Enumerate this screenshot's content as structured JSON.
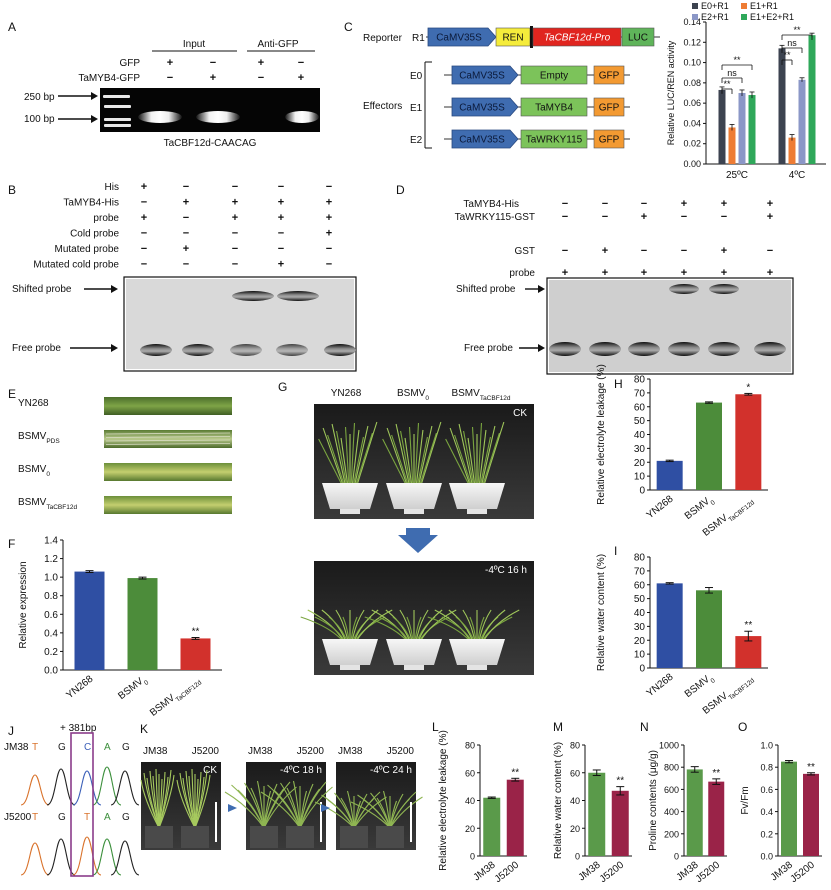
{
  "panels": {
    "A": {
      "letter": "A",
      "group_headers": [
        "Input",
        "Anti-GFP"
      ],
      "row_labels": [
        "GFP",
        "TaMYB4-GFP"
      ],
      "rows": [
        [
          "+",
          "−",
          "+",
          "−"
        ],
        [
          "−",
          "+",
          "−",
          "+"
        ]
      ],
      "ladder_labels": [
        "250 bp",
        "100 bp"
      ],
      "caption": "TaCBF12d-CAACAG"
    },
    "B": {
      "letter": "B",
      "row_labels": [
        "His",
        "TaMYB4-His",
        "probe",
        "Cold probe",
        "Mutated probe",
        "Mutated cold  probe"
      ],
      "rows": [
        [
          "+",
          "−",
          "−",
          "−",
          "−"
        ],
        [
          "−",
          "+",
          "+",
          "+",
          "+"
        ],
        [
          "+",
          "−",
          "+",
          "+",
          "+"
        ],
        [
          "−",
          "−",
          "−",
          "−",
          "+"
        ],
        [
          "−",
          "+",
          "−",
          "−",
          "−"
        ],
        [
          "−",
          "−",
          "−",
          "+",
          "−"
        ]
      ],
      "shifted_label": "Shifted probe",
      "free_label": "Free probe"
    },
    "C": {
      "letter": "C",
      "reporter_label": "Reporter",
      "reporter": {
        "id": "R1",
        "blocks": [
          "CaMV35S",
          "REN",
          "TaCBF12d-Pro",
          "LUC"
        ]
      },
      "effectors_label": "Effectors",
      "effectors": [
        {
          "id": "E0",
          "blocks": [
            "CaMV35S",
            "Empty",
            "GFP"
          ]
        },
        {
          "id": "E1",
          "blocks": [
            "CaMV35S",
            "TaMYB4",
            "GFP"
          ]
        },
        {
          "id": "E2",
          "blocks": [
            "CaMV35S",
            "TaWRKY115",
            "GFP"
          ]
        }
      ]
    },
    "D": {
      "letter": "D",
      "row_labels": [
        "TaMYB4-His",
        "TaWRKY115-GST",
        "GST",
        "probe"
      ],
      "rows": [
        [
          "−",
          "−",
          "−",
          "+",
          "+",
          "+"
        ],
        [
          "−",
          "−",
          "+",
          "−",
          "−",
          "+"
        ],
        [
          "−",
          "+",
          "−",
          "−",
          "+",
          "−"
        ],
        [
          "+",
          "+",
          "+",
          "+",
          "+",
          "+"
        ]
      ],
      "shifted_label": "Shifted probe",
      "free_label": "Free probe"
    },
    "E": {
      "letter": "E",
      "leaf_labels": [
        {
          "main": "YN268",
          "sub": ""
        },
        {
          "main": "BSMV",
          "sub": "PDS"
        },
        {
          "main": "BSMV",
          "sub": "0"
        },
        {
          "main": "BSMV",
          "sub": "TaCBF12d"
        }
      ]
    },
    "G": {
      "letter": "G",
      "columns": [
        {
          "main": "YN268",
          "sub": ""
        },
        {
          "main": "BSMV",
          "sub": "0"
        },
        {
          "main": "BSMV",
          "sub": "TaCBF12d"
        }
      ],
      "top_tag": "CK",
      "bottom_tag": "-4ºC 16 h"
    },
    "J": {
      "letter": "J",
      "annotation": "+ 381bp",
      "rows": [
        {
          "name": "JM38",
          "bases": [
            "T",
            "G",
            "C",
            "A",
            "G"
          ]
        },
        {
          "name": "J5200",
          "bases": [
            "T",
            "G",
            "T",
            "A",
            "G"
          ]
        }
      ]
    },
    "K": {
      "letter": "K",
      "photos": [
        {
          "left": "JM38",
          "right": "J5200",
          "tag": "CK"
        },
        {
          "left": "JM38",
          "right": "J5200",
          "tag": "-4ºC 18 h"
        },
        {
          "left": "JM38",
          "right": "J5200",
          "tag": "-4ºC 24 h"
        }
      ]
    }
  },
  "chart_data": [
    {
      "panel": "C",
      "type": "bar",
      "categories": [
        "25ºC",
        "4ºC"
      ],
      "ylabel": "Relative LUC/REN activity",
      "ylim": [
        0,
        0.14
      ],
      "yticks": [
        "0.00",
        "0.02",
        "0.04",
        "0.06",
        "0.08",
        "0.10",
        "0.12",
        "0.14"
      ],
      "series": [
        {
          "name": "E0+R1",
          "color": "#3c4350",
          "values": [
            0.073,
            0.114
          ],
          "errors": [
            0.003,
            0.003
          ]
        },
        {
          "name": "E1+R1",
          "color": "#ee7c34",
          "values": [
            0.036,
            0.026
          ],
          "errors": [
            0.003,
            0.003
          ]
        },
        {
          "name": "E2+R1",
          "color": "#8b97c7",
          "values": [
            0.07,
            0.083
          ],
          "errors": [
            0.003,
            0.002
          ]
        },
        {
          "name": "E1+E2+R1",
          "color": "#2fa85a",
          "values": [
            0.068,
            0.127
          ],
          "errors": [
            0.003,
            0.002
          ]
        }
      ],
      "significance": [
        "**",
        "ns",
        "**",
        "**",
        "ns",
        "**"
      ],
      "legend": "top"
    },
    {
      "panel": "F",
      "type": "bar",
      "categories": [
        {
          "main": "YN268",
          "sub": ""
        },
        {
          "main": "BSMV",
          "sub": "0"
        },
        {
          "main": "BSMV",
          "sub": "TaCBF12d"
        }
      ],
      "values": [
        1.06,
        0.99,
        0.34
      ],
      "errors": [
        0.01,
        0.01,
        0.01
      ],
      "colors": [
        "#2f4fa3",
        "#4c8c3a",
        "#d2312c"
      ],
      "marks": [
        "",
        "",
        "**"
      ],
      "ylabel": "Relative expression",
      "ylim": [
        0,
        1.4
      ],
      "yticks": [
        "0.0",
        "0.2",
        "0.4",
        "0.6",
        "0.8",
        "1.0",
        "1.2",
        "1.4"
      ]
    },
    {
      "panel": "H",
      "type": "bar",
      "categories": [
        {
          "main": "YN268",
          "sub": ""
        },
        {
          "main": "BSMV",
          "sub": "0"
        },
        {
          "main": "BSMV",
          "sub": "TaCBF12d"
        }
      ],
      "values": [
        21,
        63,
        69
      ],
      "errors": [
        0.5,
        0.5,
        0.6
      ],
      "colors": [
        "#2f4fa3",
        "#4c8c3a",
        "#d2312c"
      ],
      "marks": [
        "",
        "",
        "*"
      ],
      "ylabel": "Relative electrolyte leakage (%)",
      "ylim": [
        0,
        80
      ],
      "yticks": [
        "0",
        "10",
        "20",
        "30",
        "40",
        "50",
        "60",
        "70",
        "80"
      ]
    },
    {
      "panel": "I",
      "type": "bar",
      "categories": [
        {
          "main": "YN268",
          "sub": ""
        },
        {
          "main": "BSMV",
          "sub": "0"
        },
        {
          "main": "BSMV",
          "sub": "TaCBF12d"
        }
      ],
      "values": [
        61,
        56,
        23
      ],
      "errors": [
        0.5,
        2,
        3.5
      ],
      "colors": [
        "#2f4fa3",
        "#4c8c3a",
        "#d2312c"
      ],
      "marks": [
        "",
        "",
        "**"
      ],
      "ylabel": "Relative water content (%)",
      "ylim": [
        0,
        80
      ],
      "yticks": [
        "0",
        "10",
        "20",
        "30",
        "40",
        "50",
        "60",
        "70",
        "80"
      ]
    },
    {
      "panel": "L",
      "type": "bar",
      "categories": [
        {
          "main": "JM38",
          "sub": ""
        },
        {
          "main": "J5200",
          "sub": ""
        }
      ],
      "values": [
        42,
        55
      ],
      "errors": [
        0.5,
        1
      ],
      "colors": [
        "#5a9a4a",
        "#9a2348"
      ],
      "marks": [
        "",
        "**"
      ],
      "ylabel": "Relative electrolyte leakage (%)",
      "ylim": [
        0,
        80
      ],
      "yticks": [
        "0",
        "20",
        "40",
        "60",
        "80"
      ]
    },
    {
      "panel": "M",
      "type": "bar",
      "categories": [
        {
          "main": "JM38",
          "sub": ""
        },
        {
          "main": "J5200",
          "sub": ""
        }
      ],
      "values": [
        60,
        47
      ],
      "errors": [
        2,
        3
      ],
      "colors": [
        "#5a9a4a",
        "#9a2348"
      ],
      "marks": [
        "",
        "**"
      ],
      "ylabel": "Relative water content (%)",
      "ylim": [
        0,
        80
      ],
      "yticks": [
        "0",
        "20",
        "40",
        "60",
        "80"
      ]
    },
    {
      "panel": "N",
      "type": "bar",
      "categories": [
        {
          "main": "JM38",
          "sub": ""
        },
        {
          "main": "J5200",
          "sub": ""
        }
      ],
      "values": [
        780,
        670
      ],
      "errors": [
        25,
        25
      ],
      "colors": [
        "#5a9a4a",
        "#9a2348"
      ],
      "marks": [
        "",
        "**"
      ],
      "ylabel": "Proline contents (μg/g)",
      "ylim": [
        0,
        1000
      ],
      "yticks": [
        "0",
        "200",
        "400",
        "600",
        "800",
        "1000"
      ]
    },
    {
      "panel": "O",
      "type": "bar",
      "categories": [
        {
          "main": "JM38",
          "sub": ""
        },
        {
          "main": "J5200",
          "sub": ""
        }
      ],
      "values": [
        0.85,
        0.74
      ],
      "errors": [
        0.01,
        0.01
      ],
      "colors": [
        "#5a9a4a",
        "#9a2348"
      ],
      "marks": [
        "",
        "**"
      ],
      "ylabel": "Fv/Fm",
      "ylim": [
        0,
        1.0
      ],
      "yticks": [
        "0.0",
        "0.2",
        "0.4",
        "0.6",
        "0.8",
        "1.0"
      ]
    }
  ],
  "colors": {
    "camv35s": "#3f6cb0",
    "ren": "#f5ec3b",
    "pro": "#e0251f",
    "luc": "#5fb45a",
    "effector_gene": "#7cc35a",
    "gfp": "#f39a32",
    "arrow": "#3f6cb0",
    "trace_green": "#3b8f3b",
    "trace_blue": "#3b5fb8",
    "trace_orange": "#d9722b",
    "trace_black": "#222222",
    "highlight_box": "#8a3c8a"
  }
}
